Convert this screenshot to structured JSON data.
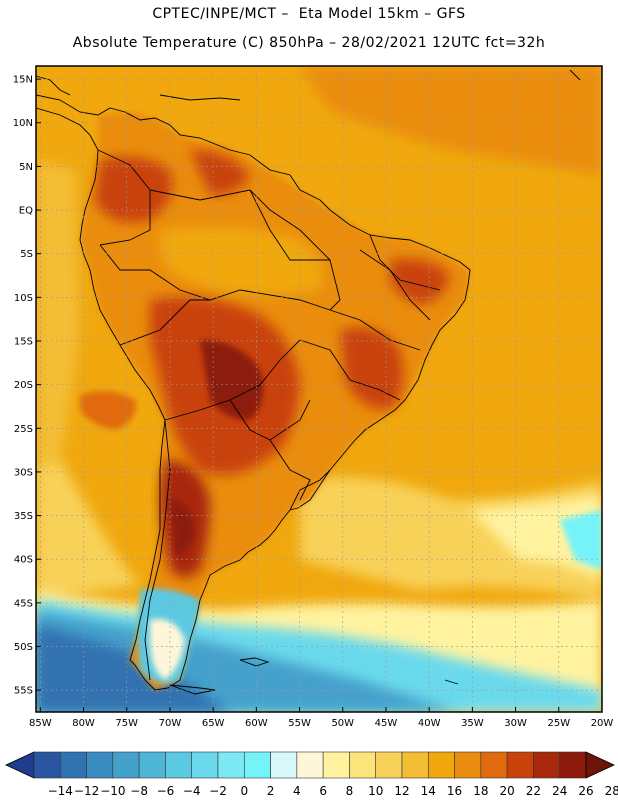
{
  "header": {
    "line1": "CPTEC/INPE/MCT –  Eta Model 15km – GFS",
    "line2": "Absolute Temperature (C) 850hPa – 28/02/2021 12UTC fct=32h"
  },
  "axes": {
    "lat_labels": [
      "15N",
      "10N",
      "5N",
      "EQ",
      "5S",
      "10S",
      "15S",
      "20S",
      "25S",
      "30S",
      "35S",
      "40S",
      "45S",
      "50S",
      "55S"
    ],
    "lat_values": [
      15,
      10,
      5,
      0,
      -5,
      -10,
      -15,
      -20,
      -25,
      -30,
      -35,
      -40,
      -45,
      -50,
      -55
    ],
    "lon_labels": [
      "85W",
      "80W",
      "75W",
      "70W",
      "65W",
      "60W",
      "55W",
      "50W",
      "45W",
      "40W",
      "35W",
      "30W",
      "25W",
      "20W"
    ],
    "lon_values": [
      -85,
      -80,
      -75,
      -70,
      -65,
      -60,
      -55,
      -50,
      -45,
      -40,
      -35,
      -30,
      -25,
      -20
    ],
    "lon_range": [
      -85.5,
      -20
    ],
    "lat_range": [
      -57.5,
      16.5
    ]
  },
  "legend": {
    "labels": [
      "-14",
      "-12",
      "-10",
      "-8",
      "-6",
      "-4",
      "-2",
      "0",
      "2",
      "4",
      "6",
      "8",
      "10",
      "12",
      "14",
      "16",
      "18",
      "20",
      "22",
      "24",
      "26",
      "28"
    ],
    "colors": [
      "#1f3d8e",
      "#2a55a0",
      "#3172b0",
      "#3a8bc0",
      "#44a1cc",
      "#4fb6d8",
      "#5bc9e2",
      "#6ad9ec",
      "#7de9f4",
      "#74f3f8",
      "#d7f7fb",
      "#fff6d9",
      "#fff3a0",
      "#fde47a",
      "#f8d158",
      "#f3bd35",
      "#f0a80e",
      "#ea8d10",
      "#e06a0d",
      "#c9420b",
      "#a8280b",
      "#8c1a0a",
      "#6e1509"
    ],
    "unit": "C"
  },
  "fields": {
    "ocean_base": "#f0a80e",
    "land_base": "#ea8d10"
  }
}
